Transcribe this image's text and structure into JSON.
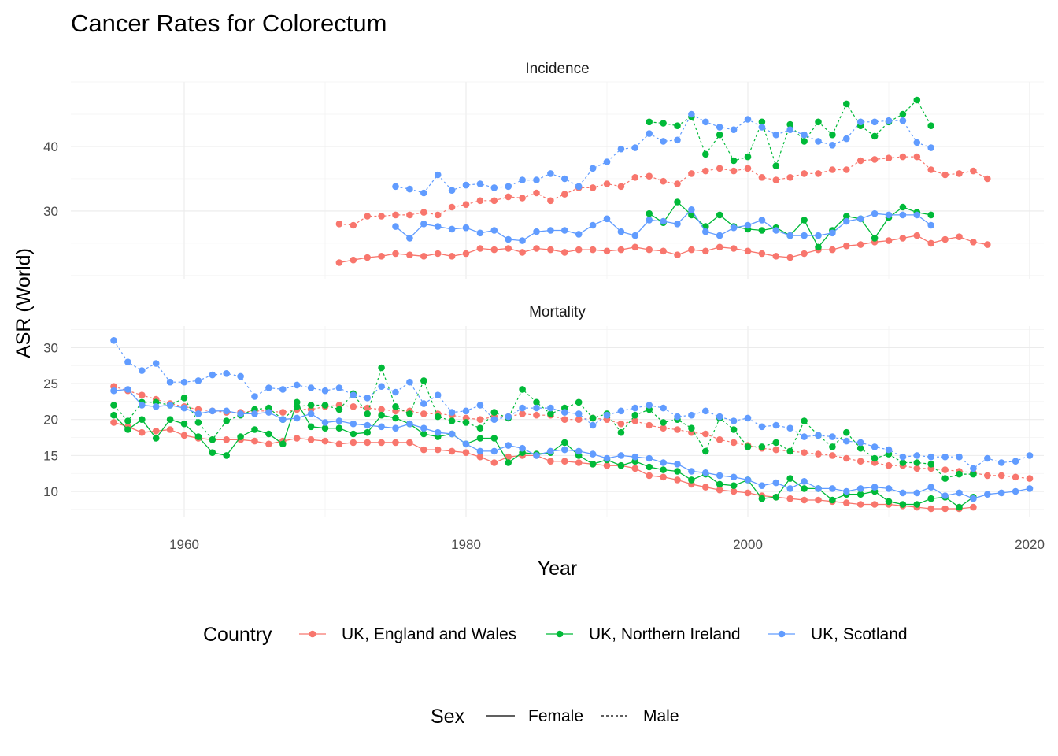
{
  "colors": {
    "england": "#F8766D",
    "ni": "#00BA38",
    "scotland": "#619CFF",
    "grid_major": "#EBEBEB",
    "grid_minor": "#F2F2F2",
    "tick_text": "#4D4D4D"
  },
  "chart_data": {
    "type": "line",
    "title": "Cancer Rates for Colorectum",
    "xlabel": "Year",
    "ylabel": "ASR (World)",
    "xlim": [
      1952,
      2020
    ],
    "x_ticks": [
      1960,
      1980,
      2000,
      2020
    ],
    "grid": true,
    "legend_placement": "bottom",
    "legends": {
      "country": {
        "title": "Country",
        "items": [
          {
            "key": "england",
            "label": "UK, England and Wales"
          },
          {
            "key": "ni",
            "label": "UK, Northern Ireland"
          },
          {
            "key": "scotland",
            "label": "UK, Scotland"
          }
        ]
      },
      "sex": {
        "title": "Sex",
        "items": [
          {
            "key": "female",
            "label": "Female",
            "linetype": "solid"
          },
          {
            "key": "male",
            "label": "Male",
            "linetype": "dotted"
          }
        ]
      }
    },
    "panels": [
      {
        "title": "Incidence",
        "ylim": [
          19.5,
          50
        ],
        "y_ticks": [
          30,
          40
        ],
        "series": [
          {
            "country": "england",
            "sex": "male",
            "start": 1971,
            "values": [
              28.0,
              27.8,
              29.2,
              29.2,
              29.4,
              29.4,
              29.8,
              29.4,
              30.6,
              31.0,
              31.6,
              31.6,
              32.2,
              32.0,
              32.8,
              31.6,
              32.6,
              33.6,
              33.6,
              34.2,
              33.8,
              35.2,
              35.4,
              34.6,
              34.2,
              35.8,
              36.2,
              36.6,
              36.2,
              36.6,
              35.2,
              34.8,
              35.2,
              35.8,
              35.8,
              36.4,
              36.4,
              37.8,
              38.0,
              38.2,
              38.4,
              38.4,
              36.4,
              35.6,
              35.8,
              36.2,
              35.0
            ]
          },
          {
            "country": "england",
            "sex": "female",
            "start": 1971,
            "values": [
              22.0,
              22.4,
              22.8,
              23.0,
              23.4,
              23.2,
              23.0,
              23.4,
              23.0,
              23.4,
              24.2,
              24.0,
              24.2,
              23.6,
              24.2,
              24.0,
              23.6,
              24.0,
              24.0,
              23.8,
              24.0,
              24.4,
              24.0,
              23.8,
              23.2,
              24.0,
              23.8,
              24.4,
              24.2,
              23.8,
              23.4,
              23.0,
              22.8,
              23.4,
              24.0,
              24.0,
              24.6,
              24.8,
              25.2,
              25.4,
              25.8,
              26.2,
              25.0,
              25.6,
              26.0,
              25.2,
              24.8
            ]
          },
          {
            "country": "ni",
            "sex": "male",
            "start": 1993,
            "values": [
              43.8,
              43.6,
              43.2,
              44.6,
              38.8,
              41.8,
              37.8,
              38.4,
              43.8,
              37.0,
              43.4,
              40.8,
              43.8,
              41.8,
              46.6,
              43.2,
              41.6,
              43.8,
              45.0,
              47.2,
              43.2
            ]
          },
          {
            "country": "ni",
            "sex": "female",
            "start": 1993,
            "values": [
              29.6,
              28.2,
              31.4,
              29.4,
              27.6,
              29.4,
              27.6,
              27.2,
              27.0,
              27.4,
              26.2,
              28.6,
              24.4,
              27.0,
              29.2,
              28.8,
              25.8,
              29.0,
              30.6,
              29.8,
              29.4
            ]
          },
          {
            "country": "scotland",
            "sex": "male",
            "start": 1975,
            "values": [
              33.8,
              33.4,
              32.8,
              35.6,
              33.2,
              34.0,
              34.2,
              33.6,
              33.8,
              34.8,
              34.8,
              35.8,
              35.0,
              33.8,
              36.6,
              37.6,
              39.6,
              39.8,
              42.0,
              40.8,
              41.0,
              45.0,
              43.8,
              43.0,
              42.6,
              44.2,
              43.0,
              41.8,
              42.6,
              41.8,
              40.8,
              40.2,
              41.2,
              43.8,
              43.8,
              44.0,
              44.0,
              40.6,
              39.8
            ]
          },
          {
            "country": "scotland",
            "sex": "female",
            "start": 1975,
            "values": [
              27.6,
              25.8,
              28.0,
              27.6,
              27.2,
              27.4,
              26.6,
              27.0,
              25.6,
              25.4,
              26.8,
              27.0,
              27.0,
              26.4,
              27.8,
              28.8,
              26.8,
              26.2,
              28.6,
              28.4,
              28.0,
              30.2,
              26.8,
              26.2,
              27.4,
              27.8,
              28.6,
              27.0,
              26.2,
              26.2,
              26.2,
              26.6,
              28.4,
              28.8,
              29.6,
              29.4,
              29.4,
              29.4,
              27.8
            ]
          }
        ]
      },
      {
        "title": "Mortality",
        "ylim": [
          6.5,
          33
        ],
        "y_ticks": [
          10,
          15,
          20,
          25,
          30
        ],
        "series": [
          {
            "country": "england",
            "sex": "male",
            "start": 1955,
            "values": [
              24.6,
              24.0,
              23.4,
              22.8,
              22.2,
              21.8,
              21.4,
              21.2,
              21.0,
              21.0,
              21.2,
              21.2,
              21.0,
              21.4,
              21.4,
              21.8,
              22.0,
              21.8,
              21.6,
              21.4,
              21.2,
              21.2,
              20.8,
              20.8,
              20.6,
              20.2,
              20.0,
              20.4,
              20.4,
              20.8,
              20.6,
              20.6,
              20.0,
              20.0,
              20.2,
              20.0,
              19.4,
              19.8,
              19.2,
              18.8,
              18.6,
              18.2,
              18.0,
              17.2,
              16.8,
              16.4,
              16.0,
              15.8,
              15.6,
              15.4,
              15.2,
              15.0,
              14.6,
              14.2,
              14.0,
              13.6,
              13.6,
              13.2,
              13.2,
              13.0,
              12.8,
              12.6,
              12.2,
              12.2,
              12.0,
              11.8
            ]
          },
          {
            "country": "england",
            "sex": "female",
            "start": 1955,
            "values": [
              19.6,
              19.0,
              18.2,
              18.4,
              18.6,
              17.8,
              17.4,
              17.2,
              17.2,
              17.2,
              17.0,
              16.6,
              17.0,
              17.4,
              17.2,
              17.0,
              16.6,
              16.8,
              16.8,
              16.8,
              16.8,
              16.8,
              15.8,
              15.8,
              15.6,
              15.4,
              14.8,
              14.0,
              14.8,
              15.0,
              15.0,
              14.2,
              14.2,
              14.0,
              13.8,
              13.6,
              13.6,
              13.2,
              12.2,
              12.0,
              11.6,
              11.0,
              10.6,
              10.2,
              10.0,
              9.8,
              9.4,
              9.2,
              9.0,
              8.8,
              8.8,
              8.6,
              8.4,
              8.2,
              8.2,
              8.2,
              8.0,
              7.8,
              7.6,
              7.6,
              7.6,
              7.8
            ]
          },
          {
            "country": "ni",
            "sex": "male",
            "start": 1955,
            "values": [
              22.0,
              19.8,
              22.4,
              22.4,
              22.0,
              23.0,
              19.6,
              17.2,
              19.8,
              20.6,
              21.4,
              21.6,
              20.0,
              21.8,
              22.0,
              22.0,
              21.4,
              23.6,
              20.8,
              27.2,
              21.8,
              20.8,
              25.4,
              20.4,
              19.8,
              19.6,
              18.8,
              21.0,
              20.2,
              24.2,
              22.4,
              20.8,
              21.6,
              22.4,
              20.2,
              20.8,
              18.2,
              20.6,
              21.4,
              19.6,
              20.0,
              18.8,
              15.6,
              20.2,
              18.6,
              16.2,
              16.2,
              16.8,
              15.6,
              19.8,
              17.8,
              16.2,
              18.2,
              16.0,
              14.6,
              15.2,
              14.0,
              14.0,
              13.8,
              11.8,
              12.4,
              12.4
            ]
          },
          {
            "country": "ni",
            "sex": "female",
            "start": 1955,
            "values": [
              20.6,
              18.6,
              20.0,
              17.4,
              20.0,
              19.4,
              17.6,
              15.4,
              15.0,
              17.6,
              18.6,
              18.0,
              16.6,
              22.4,
              19.0,
              18.8,
              18.8,
              18.0,
              18.2,
              20.6,
              20.2,
              19.4,
              18.0,
              17.6,
              18.0,
              16.6,
              17.4,
              17.4,
              14.0,
              15.4,
              15.2,
              15.4,
              16.8,
              15.0,
              13.8,
              14.4,
              13.6,
              14.2,
              13.4,
              13.0,
              12.8,
              11.6,
              12.4,
              11.0,
              10.8,
              11.6,
              9.0,
              9.2,
              11.8,
              10.4,
              10.4,
              8.8,
              9.6,
              9.6,
              10.0,
              8.6,
              8.2,
              8.2,
              9.0,
              9.2,
              7.8,
              9.2
            ]
          },
          {
            "country": "scotland",
            "sex": "male",
            "start": 1955,
            "values": [
              31.0,
              28.0,
              26.8,
              27.8,
              25.2,
              25.2,
              25.4,
              26.2,
              26.4,
              26.0,
              23.2,
              24.4,
              24.2,
              24.8,
              24.4,
              24.0,
              24.4,
              23.4,
              23.0,
              24.6,
              23.8,
              25.2,
              22.2,
              23.4,
              21.0,
              21.2,
              22.0,
              20.0,
              20.4,
              21.6,
              21.6,
              21.6,
              21.0,
              20.8,
              19.2,
              20.6,
              21.2,
              21.6,
              22.0,
              21.6,
              20.4,
              20.6,
              21.2,
              20.4,
              19.8,
              20.2,
              19.0,
              19.2,
              18.8,
              17.6,
              17.8,
              17.6,
              17.0,
              16.8,
              16.2,
              15.8,
              14.8,
              15.0,
              14.8,
              14.8,
              14.8,
              13.2,
              14.6,
              14.0,
              14.2,
              15.0
            ]
          },
          {
            "country": "scotland",
            "sex": "female",
            "start": 1955,
            "values": [
              24.0,
              24.2,
              22.0,
              21.8,
              22.0,
              21.6,
              20.8,
              21.2,
              21.2,
              20.8,
              20.8,
              21.0,
              20.0,
              20.2,
              20.8,
              19.6,
              19.8,
              19.4,
              19.2,
              19.0,
              18.8,
              19.4,
              18.8,
              18.2,
              18.0,
              16.6,
              15.6,
              15.6,
              16.4,
              16.0,
              15.0,
              15.6,
              15.8,
              15.6,
              15.2,
              14.6,
              15.0,
              14.8,
              14.6,
              14.0,
              13.8,
              12.8,
              12.6,
              12.2,
              12.0,
              11.6,
              10.8,
              11.2,
              10.4,
              11.4,
              10.4,
              10.4,
              10.0,
              10.4,
              10.6,
              10.4,
              9.8,
              9.8,
              10.6,
              9.4,
              9.8,
              9.0,
              9.6,
              9.8,
              10.0,
              10.4
            ]
          }
        ]
      }
    ]
  }
}
